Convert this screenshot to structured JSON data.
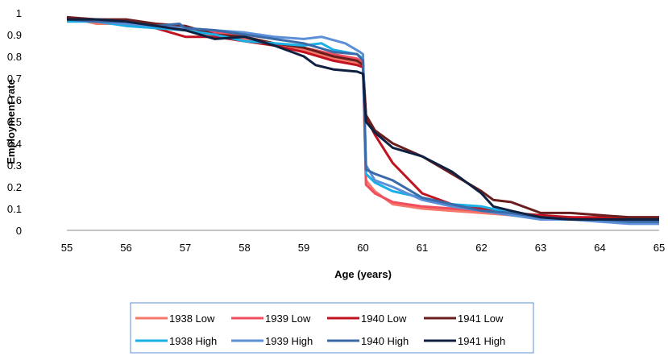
{
  "chart_data": {
    "type": "line",
    "xlabel": "Age (years)",
    "ylabel": "Employment rate",
    "xlim": [
      55,
      65
    ],
    "ylim": [
      0,
      1
    ],
    "x_ticks": [
      "55",
      "56",
      "57",
      "58",
      "59",
      "60",
      "61",
      "62",
      "63",
      "64",
      "65"
    ],
    "y_ticks": [
      "0",
      "0.1",
      "0.2",
      "0.3",
      "0.4",
      "0.5",
      "0.6",
      "0.7",
      "0.8",
      "0.9",
      "1"
    ],
    "grid": false,
    "legend_position": "bottom",
    "series": [
      {
        "name": "1938 Low",
        "color": "#F4796B",
        "points": [
          [
            55,
            0.98
          ],
          [
            55.5,
            0.95
          ],
          [
            56,
            0.95
          ],
          [
            56.5,
            0.93
          ],
          [
            57,
            0.92
          ],
          [
            57.5,
            0.89
          ],
          [
            58,
            0.88
          ],
          [
            58.5,
            0.85
          ],
          [
            59,
            0.83
          ],
          [
            59.5,
            0.79
          ],
          [
            59.9,
            0.77
          ],
          [
            60.0,
            0.75
          ],
          [
            60.05,
            0.23
          ],
          [
            60.2,
            0.18
          ],
          [
            60.5,
            0.12
          ],
          [
            61,
            0.1
          ],
          [
            61.5,
            0.09
          ],
          [
            62,
            0.08
          ],
          [
            62.5,
            0.07
          ],
          [
            63,
            0.06
          ],
          [
            63.5,
            0.06
          ],
          [
            64,
            0.05
          ],
          [
            64.5,
            0.05
          ],
          [
            65,
            0.05
          ]
        ]
      },
      {
        "name": "1939 Low",
        "color": "#F04E5E",
        "points": [
          [
            55,
            0.98
          ],
          [
            55.5,
            0.96
          ],
          [
            56,
            0.96
          ],
          [
            56.5,
            0.95
          ],
          [
            57,
            0.93
          ],
          [
            57.5,
            0.91
          ],
          [
            58,
            0.89
          ],
          [
            58.5,
            0.86
          ],
          [
            59,
            0.84
          ],
          [
            59.5,
            0.81
          ],
          [
            59.9,
            0.79
          ],
          [
            60.0,
            0.77
          ],
          [
            60.05,
            0.21
          ],
          [
            60.2,
            0.17
          ],
          [
            60.5,
            0.13
          ],
          [
            61,
            0.11
          ],
          [
            61.5,
            0.1
          ],
          [
            62,
            0.09
          ],
          [
            62.5,
            0.07
          ],
          [
            63,
            0.06
          ],
          [
            63.5,
            0.06
          ],
          [
            64,
            0.05
          ],
          [
            64.5,
            0.05
          ],
          [
            65,
            0.05
          ]
        ]
      },
      {
        "name": "1940 Low",
        "color": "#C0121F",
        "points": [
          [
            55,
            0.98
          ],
          [
            55.5,
            0.96
          ],
          [
            56,
            0.95
          ],
          [
            56.5,
            0.93
          ],
          [
            57,
            0.89
          ],
          [
            57.5,
            0.89
          ],
          [
            58,
            0.87
          ],
          [
            58.5,
            0.85
          ],
          [
            59,
            0.82
          ],
          [
            59.5,
            0.78
          ],
          [
            59.9,
            0.76
          ],
          [
            60.0,
            0.75
          ],
          [
            60.05,
            0.52
          ],
          [
            60.2,
            0.44
          ],
          [
            60.5,
            0.31
          ],
          [
            61,
            0.17
          ],
          [
            61.5,
            0.12
          ],
          [
            62,
            0.1
          ],
          [
            62.5,
            0.08
          ],
          [
            63,
            0.07
          ],
          [
            63.5,
            0.06
          ],
          [
            64,
            0.06
          ],
          [
            64.5,
            0.06
          ],
          [
            65,
            0.06
          ]
        ]
      },
      {
        "name": "1941 Low",
        "color": "#6A1E1E",
        "points": [
          [
            55,
            0.98
          ],
          [
            55.5,
            0.97
          ],
          [
            56,
            0.97
          ],
          [
            56.5,
            0.95
          ],
          [
            57,
            0.94
          ],
          [
            57.5,
            0.9
          ],
          [
            58,
            0.89
          ],
          [
            58.5,
            0.86
          ],
          [
            59,
            0.84
          ],
          [
            59.5,
            0.8
          ],
          [
            59.9,
            0.78
          ],
          [
            60.0,
            0.76
          ],
          [
            60.05,
            0.53
          ],
          [
            60.2,
            0.46
          ],
          [
            60.5,
            0.4
          ],
          [
            61,
            0.34
          ],
          [
            61.5,
            0.26
          ],
          [
            62,
            0.18
          ],
          [
            62.2,
            0.14
          ],
          [
            62.5,
            0.13
          ],
          [
            63,
            0.08
          ],
          [
            63.5,
            0.08
          ],
          [
            64,
            0.07
          ],
          [
            64.5,
            0.06
          ],
          [
            65,
            0.06
          ]
        ]
      },
      {
        "name": "1938 High",
        "color": "#1AAFE6",
        "points": [
          [
            55,
            0.96
          ],
          [
            55.5,
            0.96
          ],
          [
            56,
            0.94
          ],
          [
            56.5,
            0.93
          ],
          [
            57,
            0.92
          ],
          [
            57.5,
            0.9
          ],
          [
            58,
            0.87
          ],
          [
            58.5,
            0.86
          ],
          [
            59,
            0.85
          ],
          [
            59.3,
            0.86
          ],
          [
            59.5,
            0.83
          ],
          [
            59.9,
            0.81
          ],
          [
            60.0,
            0.79
          ],
          [
            60.05,
            0.26
          ],
          [
            60.2,
            0.22
          ],
          [
            60.5,
            0.18
          ],
          [
            61,
            0.15
          ],
          [
            61.5,
            0.12
          ],
          [
            62,
            0.11
          ],
          [
            62.5,
            0.08
          ],
          [
            63,
            0.06
          ],
          [
            63.5,
            0.05
          ],
          [
            64,
            0.05
          ],
          [
            64.5,
            0.04
          ],
          [
            65,
            0.04
          ]
        ]
      },
      {
        "name": "1939 High",
        "color": "#5B8FD8",
        "points": [
          [
            55,
            0.97
          ],
          [
            55.5,
            0.96
          ],
          [
            56,
            0.95
          ],
          [
            56.5,
            0.94
          ],
          [
            57,
            0.93
          ],
          [
            57.5,
            0.92
          ],
          [
            58,
            0.91
          ],
          [
            58.5,
            0.89
          ],
          [
            59,
            0.88
          ],
          [
            59.3,
            0.89
          ],
          [
            59.7,
            0.86
          ],
          [
            59.95,
            0.82
          ],
          [
            60.0,
            0.81
          ],
          [
            60.05,
            0.3
          ],
          [
            60.2,
            0.23
          ],
          [
            60.5,
            0.2
          ],
          [
            61,
            0.14
          ],
          [
            61.5,
            0.11
          ],
          [
            62,
            0.09
          ],
          [
            62.5,
            0.07
          ],
          [
            63,
            0.05
          ],
          [
            63.5,
            0.05
          ],
          [
            64,
            0.04
          ],
          [
            64.5,
            0.03
          ],
          [
            65,
            0.03
          ]
        ]
      },
      {
        "name": "1940 High",
        "color": "#3A6AA8",
        "points": [
          [
            55,
            0.97
          ],
          [
            55.5,
            0.96
          ],
          [
            56,
            0.96
          ],
          [
            56.5,
            0.94
          ],
          [
            56.9,
            0.95
          ],
          [
            57,
            0.93
          ],
          [
            57.5,
            0.92
          ],
          [
            58,
            0.9
          ],
          [
            58.5,
            0.88
          ],
          [
            59,
            0.86
          ],
          [
            59.5,
            0.82
          ],
          [
            59.9,
            0.81
          ],
          [
            60.0,
            0.78
          ],
          [
            60.05,
            0.28
          ],
          [
            60.2,
            0.26
          ],
          [
            60.5,
            0.23
          ],
          [
            61,
            0.15
          ],
          [
            61.5,
            0.12
          ],
          [
            62,
            0.09
          ],
          [
            62.5,
            0.08
          ],
          [
            63,
            0.06
          ],
          [
            63.5,
            0.05
          ],
          [
            64,
            0.05
          ],
          [
            64.5,
            0.04
          ],
          [
            65,
            0.04
          ]
        ]
      },
      {
        "name": "1941 High",
        "color": "#0F2040",
        "points": [
          [
            55,
            0.97
          ],
          [
            55.5,
            0.97
          ],
          [
            56,
            0.96
          ],
          [
            56.5,
            0.94
          ],
          [
            57,
            0.92
          ],
          [
            57.5,
            0.88
          ],
          [
            58,
            0.89
          ],
          [
            58.5,
            0.85
          ],
          [
            59,
            0.8
          ],
          [
            59.2,
            0.76
          ],
          [
            59.5,
            0.74
          ],
          [
            59.9,
            0.73
          ],
          [
            60.0,
            0.72
          ],
          [
            60.05,
            0.5
          ],
          [
            60.2,
            0.45
          ],
          [
            60.5,
            0.38
          ],
          [
            61,
            0.34
          ],
          [
            61.5,
            0.27
          ],
          [
            62,
            0.17
          ],
          [
            62.2,
            0.11
          ],
          [
            62.5,
            0.09
          ],
          [
            63,
            0.06
          ],
          [
            63.5,
            0.05
          ],
          [
            64,
            0.05
          ],
          [
            64.5,
            0.05
          ],
          [
            65,
            0.05
          ]
        ]
      }
    ]
  }
}
